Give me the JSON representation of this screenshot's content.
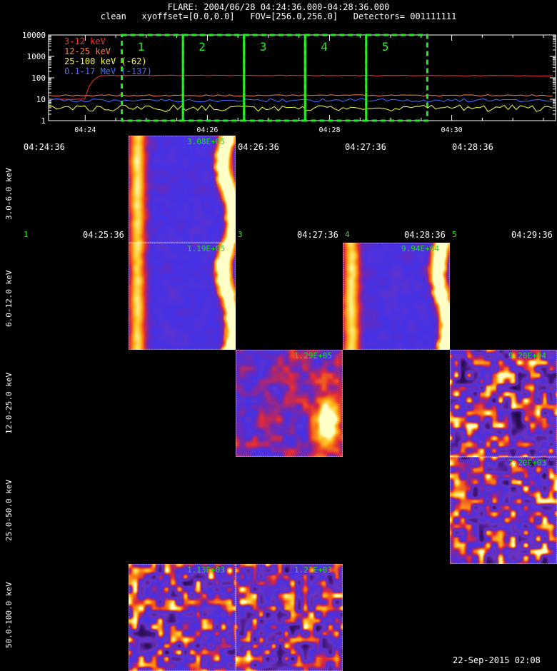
{
  "header": {
    "line1": "FLARE: 2004/06/28 04:24:36.000-04:28:36.000",
    "line2": "clean   xyoffset=[0.0,0.0]   FOV=[256.0,256.0]   Detectors= 001111111"
  },
  "chart_data": {
    "type": "line",
    "y_scale": "log",
    "ylim": [
      1,
      10000
    ],
    "y_ticks": [
      "1",
      "10",
      "100",
      "1000",
      "10000"
    ],
    "xlim_minutes": [
      23.4,
      31.7
    ],
    "x_ticks": [
      "04:24",
      "04:26",
      "04:28",
      "04:30"
    ],
    "x_tick_minutes": [
      24,
      26,
      28,
      30
    ],
    "series": [
      {
        "name": "3-12 keV",
        "color": "#ff3030",
        "level": 130,
        "jitter": 0.03
      },
      {
        "name": "12-25 keV",
        "color": "#ff8040",
        "level": 15,
        "jitter": 0.08
      },
      {
        "name": "25-100 keV (-62)",
        "color": "#ffff40",
        "level": 4,
        "jitter": 0.35
      },
      {
        "name": "0.1-17 MeV (-137)",
        "color": "#4a6cff",
        "level": 9,
        "jitter": 0.18
      }
    ],
    "intervals": [
      {
        "label": "1",
        "start": 24.6,
        "end": 25.6
      },
      {
        "label": "2",
        "start": 25.6,
        "end": 26.6
      },
      {
        "label": "3",
        "start": 26.6,
        "end": 27.6
      },
      {
        "label": "4",
        "start": 27.6,
        "end": 28.6
      },
      {
        "label": "5",
        "start": 28.6,
        "end": 29.6
      }
    ]
  },
  "columns": [
    {
      "label": "1",
      "start": "04:24:36",
      "end": "04:25:36"
    },
    {
      "label": "2",
      "start": "04:25:36",
      "end": "04:26:36"
    },
    {
      "label": "3",
      "start": "04:26:36",
      "end": "04:27:36"
    },
    {
      "label": "4",
      "start": "04:27:36",
      "end": "04:28:36"
    },
    {
      "label": "5",
      "start": "04:28:36",
      "end": "04:29:36"
    }
  ],
  "rows": [
    "3.0-6.0 keV",
    "6.0-12.0 keV",
    "12.0-25.0 keV",
    "25.0-50.0 keV",
    "50.0-100.0 keV"
  ],
  "images": [
    {
      "row": 0,
      "col": 1,
      "peak": "3.08E+05",
      "style": "ridge",
      "seed": 3
    },
    {
      "row": 1,
      "col": 1,
      "peak": "1.19E+05",
      "style": "ridge",
      "seed": 7
    },
    {
      "row": 1,
      "col": 3,
      "peak": "9.94E+04",
      "style": "ridge",
      "seed": 11
    },
    {
      "row": 2,
      "col": 2,
      "peak": "1.29E+05",
      "style": "blob",
      "seed": 5
    },
    {
      "row": 2,
      "col": 4,
      "peak": "9.20E+04",
      "style": "noise",
      "seed": 13
    },
    {
      "row": 3,
      "col": 4,
      "peak": "2.20E+03",
      "style": "noise",
      "seed": 17
    },
    {
      "row": 4,
      "col": 1,
      "peak": "1.13E+03",
      "style": "noise",
      "seed": 19
    },
    {
      "row": 4,
      "col": 2,
      "peak": "1.21E+03",
      "style": "noise",
      "seed": 23
    }
  ],
  "footer": {
    "timestamp": "22-Sep-2015 02:08"
  }
}
